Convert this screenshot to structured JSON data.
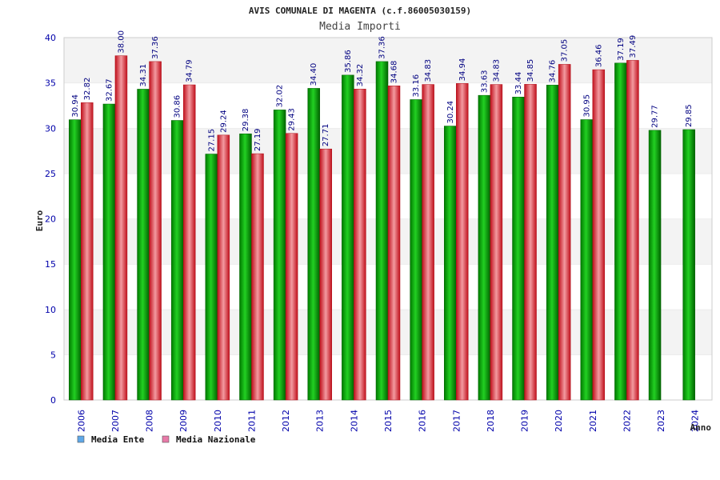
{
  "chart_data": {
    "type": "bar",
    "title": "AVIS COMUNALE DI MAGENTA (c.f.86005030159)",
    "subtitle": "Media Importi",
    "xlabel": "Anno",
    "ylabel": "Euro",
    "ylim": [
      0,
      40
    ],
    "yticks": [
      0,
      5,
      10,
      15,
      20,
      25,
      30,
      35,
      40
    ],
    "grid": true,
    "legend_position": "bottom-left",
    "categories": [
      "2006",
      "2007",
      "2008",
      "2009",
      "2010",
      "2011",
      "2012",
      "2013",
      "2014",
      "2015",
      "2016",
      "2017",
      "2018",
      "2019",
      "2020",
      "2021",
      "2022",
      "2023",
      "2024"
    ],
    "series": [
      {
        "name": "Media Ente",
        "color": "#00b000",
        "legend_color": "#5fa8e8",
        "values": [
          30.94,
          32.67,
          34.31,
          30.86,
          27.15,
          29.38,
          32.02,
          34.4,
          35.86,
          37.36,
          33.16,
          30.24,
          33.63,
          33.44,
          34.76,
          30.95,
          37.19,
          29.77,
          29.85
        ],
        "labels": [
          "30.94",
          "32.67",
          "34.31",
          "30.86",
          "27.15",
          "29.38",
          "32.02",
          "34.40",
          "35.86",
          "37.36",
          "33.16",
          "30.24",
          "33.63",
          "33.44",
          "34.76",
          "30.95",
          "37.19",
          "29.77",
          "29.85"
        ]
      },
      {
        "name": "Media Nazionale",
        "color": "#e8303a",
        "legend_color": "#e87aa8",
        "values": [
          32.82,
          38.0,
          37.36,
          34.79,
          29.24,
          27.19,
          29.43,
          27.71,
          34.32,
          34.68,
          34.83,
          34.94,
          34.83,
          34.85,
          37.05,
          36.46,
          37.49,
          null,
          null
        ],
        "labels": [
          "32.82",
          "38.00",
          "37.36",
          "34.79",
          "29.24",
          "27.19",
          "29.43",
          "27.71",
          "34.32",
          "34.68",
          "34.83",
          "34.94",
          "34.83",
          "34.85",
          "37.05",
          "36.46",
          "37.49",
          "",
          ""
        ]
      }
    ]
  }
}
